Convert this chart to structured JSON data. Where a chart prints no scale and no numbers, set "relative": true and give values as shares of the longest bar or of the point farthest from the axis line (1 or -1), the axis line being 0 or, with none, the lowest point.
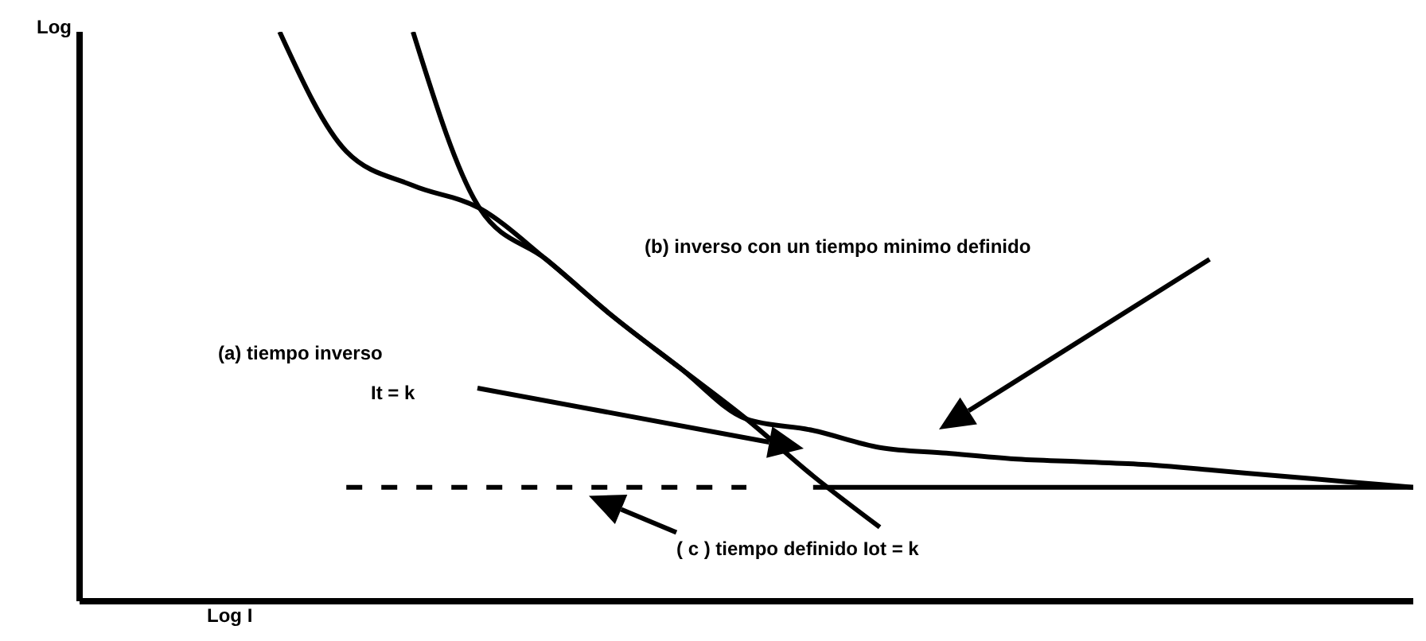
{
  "chart_data": {
    "type": "line",
    "relative": true,
    "xlabel": "Log I",
    "ylabel": "Log",
    "marker": "none",
    "categories": [
      null,
      null,
      null,
      null,
      null,
      null,
      null,
      null,
      null,
      null,
      null,
      null,
      null,
      null,
      null,
      null,
      null,
      null,
      null,
      null,
      null
    ],
    "series": [
      {
        "color": "#000000",
        "line_style": "solid",
        "values": [
          null,
          null,
          null,
          1.0,
          0.79,
          0.73,
          0.69,
          0.6,
          0.5,
          0.41,
          0.32,
          0.22,
          0.13,
          null,
          null,
          null,
          null,
          null,
          null,
          null,
          null
        ]
      },
      {
        "color": "#000000",
        "line_style": "solid",
        "values": [
          null,
          null,
          null,
          null,
          null,
          1.0,
          0.69,
          0.6,
          0.5,
          0.41,
          0.32,
          0.3,
          0.27,
          0.26,
          0.25,
          0.245,
          0.24,
          0.23,
          0.22,
          0.21,
          0.2
        ]
      },
      {
        "color": "#000000",
        "line_style": "dashed",
        "values": [
          null,
          null,
          null,
          null,
          0.2,
          0.2,
          0.2,
          0.2,
          0.2,
          0.2,
          0.2,
          null,
          null,
          null,
          null,
          null,
          null,
          null,
          null,
          null,
          null
        ]
      },
      {
        "color": "#000000",
        "line_style": "solid",
        "values": [
          null,
          null,
          null,
          null,
          null,
          null,
          null,
          null,
          null,
          null,
          null,
          0.2,
          0.2,
          0.2,
          0.2,
          0.2,
          0.2,
          0.2,
          0.2,
          0.2,
          0.2
        ]
      }
    ],
    "annotations": [
      "(b) inverso con un tiempo minimo definido",
      "(a) tiempo inverso",
      "It = k",
      "( c ) tiempo definido Iot = k"
    ]
  }
}
